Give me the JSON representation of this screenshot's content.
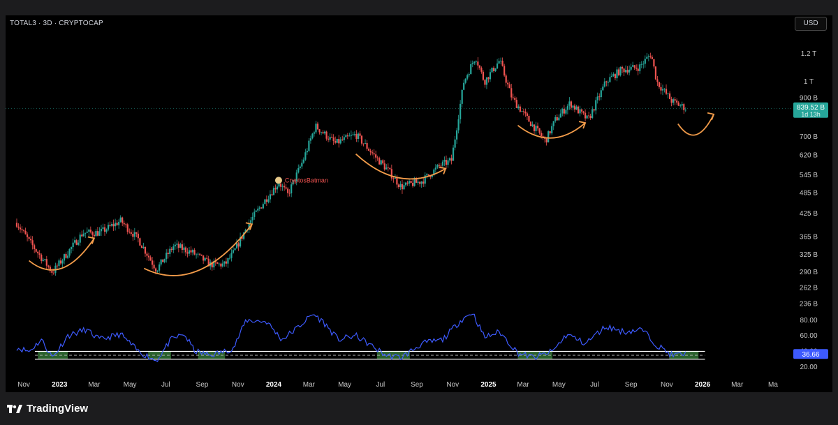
{
  "header": {
    "title": "TOTAL3 · 3D · CRYPTOCAP",
    "currency": "USD"
  },
  "footer": {
    "brand": "TradingView"
  },
  "chart_data": {
    "type": "candlestick",
    "title": "TOTAL3 · 3D · CRYPTOCAP",
    "price_axis_labels": [
      "1.2 T",
      "1 T",
      "900 B",
      "700 B",
      "620 B",
      "545 B",
      "485 B",
      "425 B",
      "365 B",
      "325 B",
      "290 B",
      "262 B",
      "236 B"
    ],
    "price_scale": "log",
    "current_price_label": "839.52 B",
    "countdown_label": "1d 13h",
    "watermark_label": "CryptosBatman",
    "time_axis_labels": [
      "Nov",
      "2023",
      "Mar",
      "May",
      "Jul",
      "Sep",
      "Nov",
      "2024",
      "Mar",
      "May",
      "Jul",
      "Sep",
      "Nov",
      "2025",
      "Mar",
      "May",
      "Jul",
      "Sep",
      "Nov",
      "2026",
      "Mar",
      "Ma"
    ],
    "price_path": [
      [
        "2022-10-20",
        400
      ],
      [
        "2022-11-10",
        355
      ],
      [
        "2022-12-20",
        290
      ],
      [
        "2023-01-15",
        330
      ],
      [
        "2023-02-10",
        375
      ],
      [
        "2023-03-10",
        375
      ],
      [
        "2023-04-15",
        405
      ],
      [
        "2023-05-15",
        360
      ],
      [
        "2023-06-15",
        295
      ],
      [
        "2023-07-15",
        345
      ],
      [
        "2023-08-15",
        330
      ],
      [
        "2023-09-15",
        305
      ],
      [
        "2023-10-10",
        305
      ],
      [
        "2023-10-25",
        330
      ],
      [
        "2023-11-20",
        400
      ],
      [
        "2023-12-20",
        470
      ],
      [
        "2024-01-10",
        520
      ],
      [
        "2024-01-25",
        480
      ],
      [
        "2024-02-20",
        600
      ],
      [
        "2024-03-12",
        750
      ],
      [
        "2024-04-15",
        670
      ],
      [
        "2024-05-20",
        710
      ],
      [
        "2024-06-20",
        620
      ],
      [
        "2024-07-15",
        560
      ],
      [
        "2024-08-05",
        505
      ],
      [
        "2024-09-10",
        525
      ],
      [
        "2024-10-10",
        580
      ],
      [
        "2024-10-30",
        600
      ],
      [
        "2024-11-20",
        1000
      ],
      [
        "2024-12-10",
        1180
      ],
      [
        "2024-12-25",
        1000
      ],
      [
        "2025-01-20",
        1150
      ],
      [
        "2025-02-10",
        900
      ],
      [
        "2025-03-10",
        780
      ],
      [
        "2025-04-08",
        680
      ],
      [
        "2025-04-25",
        780
      ],
      [
        "2025-05-20",
        870
      ],
      [
        "2025-06-20",
        780
      ],
      [
        "2025-07-20",
        1000
      ],
      [
        "2025-08-15",
        1080
      ],
      [
        "2025-09-15",
        1100
      ],
      [
        "2025-10-05",
        1200
      ],
      [
        "2025-10-15",
        1000
      ],
      [
        "2025-11-10",
        880
      ],
      [
        "2025-12-05",
        839.52
      ]
    ],
    "rsi": {
      "current_label": "36.66",
      "axis_labels": [
        "80.00",
        "60.00",
        "40.00",
        "20.00"
      ],
      "range": [
        10,
        95
      ],
      "upper_band": 40,
      "lower_band": 30,
      "path": [
        [
          "2022-10-20",
          45
        ],
        [
          "2022-11-10",
          40
        ],
        [
          "2022-12-01",
          55
        ],
        [
          "2022-12-20",
          32
        ],
        [
          "2023-01-15",
          60
        ],
        [
          "2023-02-15",
          68
        ],
        [
          "2023-03-10",
          55
        ],
        [
          "2023-04-15",
          62
        ],
        [
          "2023-05-15",
          40
        ],
        [
          "2023-06-15",
          28
        ],
        [
          "2023-07-10",
          55
        ],
        [
          "2023-08-01",
          62
        ],
        [
          "2023-08-20",
          40
        ],
        [
          "2023-09-15",
          35
        ],
        [
          "2023-10-10",
          40
        ],
        [
          "2023-10-25",
          45
        ],
        [
          "2023-11-15",
          80
        ],
        [
          "2023-12-20",
          78
        ],
        [
          "2024-01-15",
          55
        ],
        [
          "2024-02-10",
          70
        ],
        [
          "2024-03-08",
          88
        ],
        [
          "2024-03-25",
          78
        ],
        [
          "2024-04-20",
          55
        ],
        [
          "2024-05-20",
          60
        ],
        [
          "2024-06-20",
          45
        ],
        [
          "2024-07-10",
          35
        ],
        [
          "2024-08-05",
          32
        ],
        [
          "2024-09-10",
          50
        ],
        [
          "2024-10-15",
          55
        ],
        [
          "2024-11-15",
          80
        ],
        [
          "2024-12-05",
          90
        ],
        [
          "2024-12-25",
          58
        ],
        [
          "2025-01-20",
          65
        ],
        [
          "2025-02-20",
          38
        ],
        [
          "2025-03-20",
          32
        ],
        [
          "2025-04-20",
          40
        ],
        [
          "2025-05-15",
          62
        ],
        [
          "2025-06-15",
          50
        ],
        [
          "2025-07-20",
          72
        ],
        [
          "2025-08-20",
          65
        ],
        [
          "2025-09-20",
          68
        ],
        [
          "2025-10-15",
          48
        ],
        [
          "2025-11-10",
          35
        ],
        [
          "2025-12-05",
          36.66
        ]
      ],
      "shaded_periods": [
        [
          "2022-11-25",
          "2023-01-15"
        ],
        [
          "2023-06-01",
          "2023-07-10"
        ],
        [
          "2023-08-25",
          "2023-10-10"
        ],
        [
          "2024-06-25",
          "2024-08-20"
        ],
        [
          "2025-02-20",
          "2025-04-20"
        ],
        [
          "2025-11-05",
          "2025-12-25"
        ]
      ]
    },
    "annotations": [
      {
        "type": "curved-arrow",
        "from": "2022-11-10",
        "to": "2023-03-01",
        "color": "#f39c4a"
      },
      {
        "type": "curved-arrow",
        "from": "2023-05-25",
        "to": "2023-11-25",
        "color": "#f39c4a"
      },
      {
        "type": "curved-arrow",
        "from": "2024-05-20",
        "to": "2024-10-20",
        "color": "#f39c4a"
      },
      {
        "type": "curved-arrow",
        "from": "2025-02-20",
        "to": "2025-06-15",
        "color": "#f39c4a"
      },
      {
        "type": "curved-arrow",
        "from": "2025-11-20",
        "to": "2026-01-20",
        "color": "#f39c4a"
      }
    ],
    "colors": {
      "up": "#26a69a",
      "down": "#ef5350",
      "rsi": "#3d5afe",
      "arrow": "#f39c4a",
      "price_label": "#26a69a",
      "rsi_label": "#3d5afe",
      "shade": "#4caf50"
    }
  }
}
